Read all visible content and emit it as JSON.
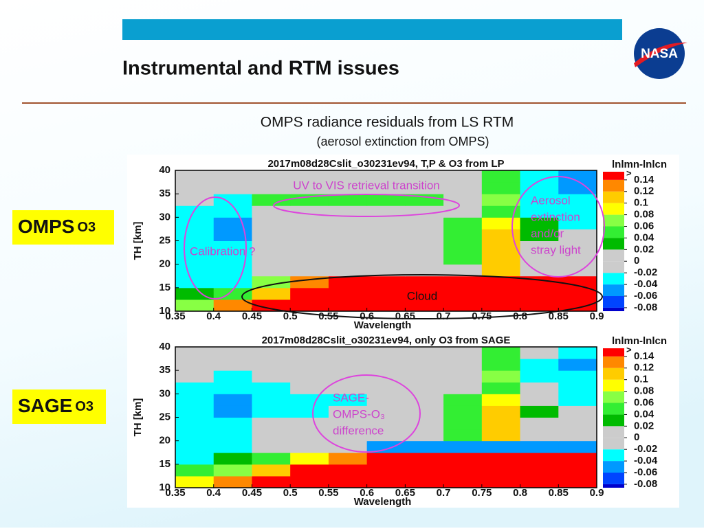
{
  "header": {
    "title": "Instrumental and RTM issues",
    "logo_text": "NASA"
  },
  "subtitle": "OMPS radiance residuals from LS RTM",
  "subtitle2": "(aerosol extinction from OMPS)",
  "side_labels": [
    {
      "name": "OMPS",
      "species": "O3"
    },
    {
      "name": "SAGE",
      "species": "O3"
    }
  ],
  "chart_data": [
    {
      "type": "heatmap",
      "title": "2017m08d28Cslit_o30231ev94, T,P & O3 from LP",
      "x_label": "Wavelength",
      "y_label": "TH [km]",
      "xlim": [
        0.35,
        0.9
      ],
      "ylim": [
        10,
        40
      ],
      "xticks": [
        0.35,
        0.4,
        0.45,
        0.5,
        0.55,
        0.6,
        0.65,
        0.7,
        0.75,
        0.8,
        0.85,
        0.9
      ],
      "yticks": [
        10,
        15,
        20,
        25,
        30,
        35,
        40
      ],
      "xbins": [
        0.35,
        0.4,
        0.45,
        0.5,
        0.55,
        0.6,
        0.65,
        0.7,
        0.75,
        0.8,
        0.85,
        0.9
      ],
      "ybins": [
        10,
        12.5,
        15,
        17.5,
        20,
        22.5,
        25,
        27.5,
        30,
        32.5,
        35,
        37.5,
        40
      ],
      "z": [
        [
          0.07,
          0.12,
          0.15,
          0.15,
          0.15,
          0.15,
          0.15,
          0.15,
          0.15,
          0.15,
          0.15
        ],
        [
          0.03,
          0.05,
          0.1,
          0.15,
          0.15,
          0.15,
          0.15,
          0.15,
          0.15,
          0.15,
          0.15
        ],
        [
          -0.03,
          -0.03,
          0.06,
          0.12,
          0.15,
          0.15,
          0.15,
          0.15,
          0.15,
          0.15,
          0.15
        ],
        [
          -0.03,
          -0.03,
          0,
          0,
          0,
          0,
          0,
          0,
          0.1,
          0,
          0
        ],
        [
          -0.03,
          -0.03,
          0,
          0,
          0,
          0,
          0,
          0.05,
          0.1,
          0,
          0
        ],
        [
          -0.03,
          -0.04,
          0,
          0,
          0,
          0,
          0,
          0.05,
          0.11,
          0,
          0
        ],
        [
          -0.03,
          -0.05,
          0,
          0,
          0,
          0,
          0,
          0.05,
          0.11,
          0.03,
          0
        ],
        [
          -0.03,
          -0.05,
          0,
          0,
          0,
          0,
          0,
          0.04,
          0.08,
          0.03,
          -0.03
        ],
        [
          -0.03,
          -0.04,
          0,
          0,
          0,
          0,
          0,
          0,
          0.05,
          -0.03,
          -0.03
        ],
        [
          0,
          -0.03,
          0.04,
          0.04,
          0.04,
          0.04,
          0.04,
          0,
          0.06,
          -0.03,
          -0.04
        ],
        [
          0,
          0,
          0,
          0,
          0,
          0,
          0,
          0,
          0.05,
          -0.03,
          -0.05
        ],
        [
          0,
          0,
          0,
          0,
          0,
          0,
          0,
          0,
          0.04,
          -0.03,
          -0.05
        ]
      ],
      "colorbar": {
        "title": "lnlmn-lnlcn",
        "top_label": ">",
        "clim": [
          -0.086,
          0.154
        ],
        "ticks": [
          -0.08,
          -0.06,
          -0.04,
          -0.02,
          0,
          0.02,
          0.04,
          0.06,
          0.08,
          0.1,
          0.12,
          0.14
        ],
        "colors": [
          "#0000cc",
          "#0044ff",
          "#0099ff",
          "#00ffff",
          "#cccccc",
          "#cccccc",
          "#00bb00",
          "#33ee33",
          "#88ff44",
          "#ffff00",
          "#ffcc00",
          "#ff8800",
          "#ff0000"
        ]
      },
      "annotations": [
        {
          "lines": [
            "UV to VIS retrieval transition"
          ]
        },
        {
          "lines": [
            "Aerosol",
            "extinction",
            "and/or",
            "stray light"
          ]
        },
        {
          "lines": [
            "Calibration ?"
          ]
        },
        {
          "lines": [
            "Cloud"
          ]
        }
      ]
    },
    {
      "type": "heatmap",
      "title": "2017m08d28Cslit_o30231ev94, only O3 from SAGE",
      "x_label": "Wavelength",
      "y_label": "TH [km]",
      "xlim": [
        0.35,
        0.9
      ],
      "ylim": [
        10,
        40
      ],
      "xticks": [
        0.35,
        0.4,
        0.45,
        0.5,
        0.55,
        0.6,
        0.65,
        0.7,
        0.75,
        0.8,
        0.85,
        0.9
      ],
      "yticks": [
        10,
        15,
        20,
        25,
        30,
        35,
        40
      ],
      "xbins": [
        0.35,
        0.4,
        0.45,
        0.5,
        0.55,
        0.6,
        0.65,
        0.7,
        0.75,
        0.8,
        0.85,
        0.9
      ],
      "ybins": [
        10,
        12.5,
        15,
        17.5,
        20,
        22.5,
        25,
        27.5,
        30,
        32.5,
        35,
        37.5,
        40
      ],
      "z": [
        [
          0.08,
          0.12,
          0.15,
          0.15,
          0.15,
          0.15,
          0.15,
          0.15,
          0.15,
          0.15,
          0.15
        ],
        [
          0.04,
          0.06,
          0.1,
          0.15,
          0.15,
          0.15,
          0.15,
          0.15,
          0.15,
          0.15,
          0.15
        ],
        [
          -0.03,
          0.03,
          0.05,
          0.08,
          0.12,
          0.15,
          0.15,
          0.15,
          0.15,
          0.15,
          0.15
        ],
        [
          -0.03,
          -0.03,
          0,
          0,
          0,
          -0.05,
          -0.05,
          -0.05,
          -0.05,
          -0.05,
          -0.05
        ],
        [
          -0.03,
          -0.03,
          0,
          0,
          0,
          0,
          0,
          0.05,
          0.1,
          0,
          0
        ],
        [
          -0.03,
          -0.04,
          0,
          0,
          0,
          0,
          0,
          0.05,
          0.11,
          0,
          0
        ],
        [
          -0.03,
          -0.05,
          -0.03,
          -0.03,
          0,
          0,
          0,
          0.05,
          0.11,
          0.03,
          0
        ],
        [
          -0.03,
          -0.05,
          -0.03,
          -0.03,
          -0.03,
          0,
          0,
          0.04,
          0.08,
          0,
          -0.03
        ],
        [
          -0.03,
          -0.04,
          -0.03,
          0,
          0,
          0,
          0,
          0,
          0.05,
          0,
          -0.03
        ],
        [
          0,
          -0.03,
          0,
          0,
          0,
          0,
          0,
          0,
          0.06,
          -0.03,
          -0.04
        ],
        [
          0,
          0,
          0,
          0,
          0,
          0,
          0,
          0,
          0.05,
          -0.03,
          -0.05
        ],
        [
          0,
          0,
          0,
          0,
          0,
          0,
          0,
          0,
          0.04,
          0,
          -0.04
        ]
      ],
      "colorbar": {
        "title": "lnlmn-lnlcn",
        "top_label": ">",
        "clim": [
          -0.086,
          0.154
        ],
        "ticks": [
          -0.08,
          -0.06,
          -0.04,
          -0.02,
          0,
          0.02,
          0.04,
          0.06,
          0.08,
          0.1,
          0.12,
          0.14
        ],
        "colors": [
          "#0000cc",
          "#0044ff",
          "#0099ff",
          "#00ffff",
          "#cccccc",
          "#cccccc",
          "#00bb00",
          "#33ee33",
          "#88ff44",
          "#ffff00",
          "#ffcc00",
          "#ff8800",
          "#ff0000"
        ]
      },
      "annotations": [
        {
          "lines": [
            "SAGE-",
            "OMPS-O₃",
            "difference"
          ]
        }
      ]
    }
  ]
}
